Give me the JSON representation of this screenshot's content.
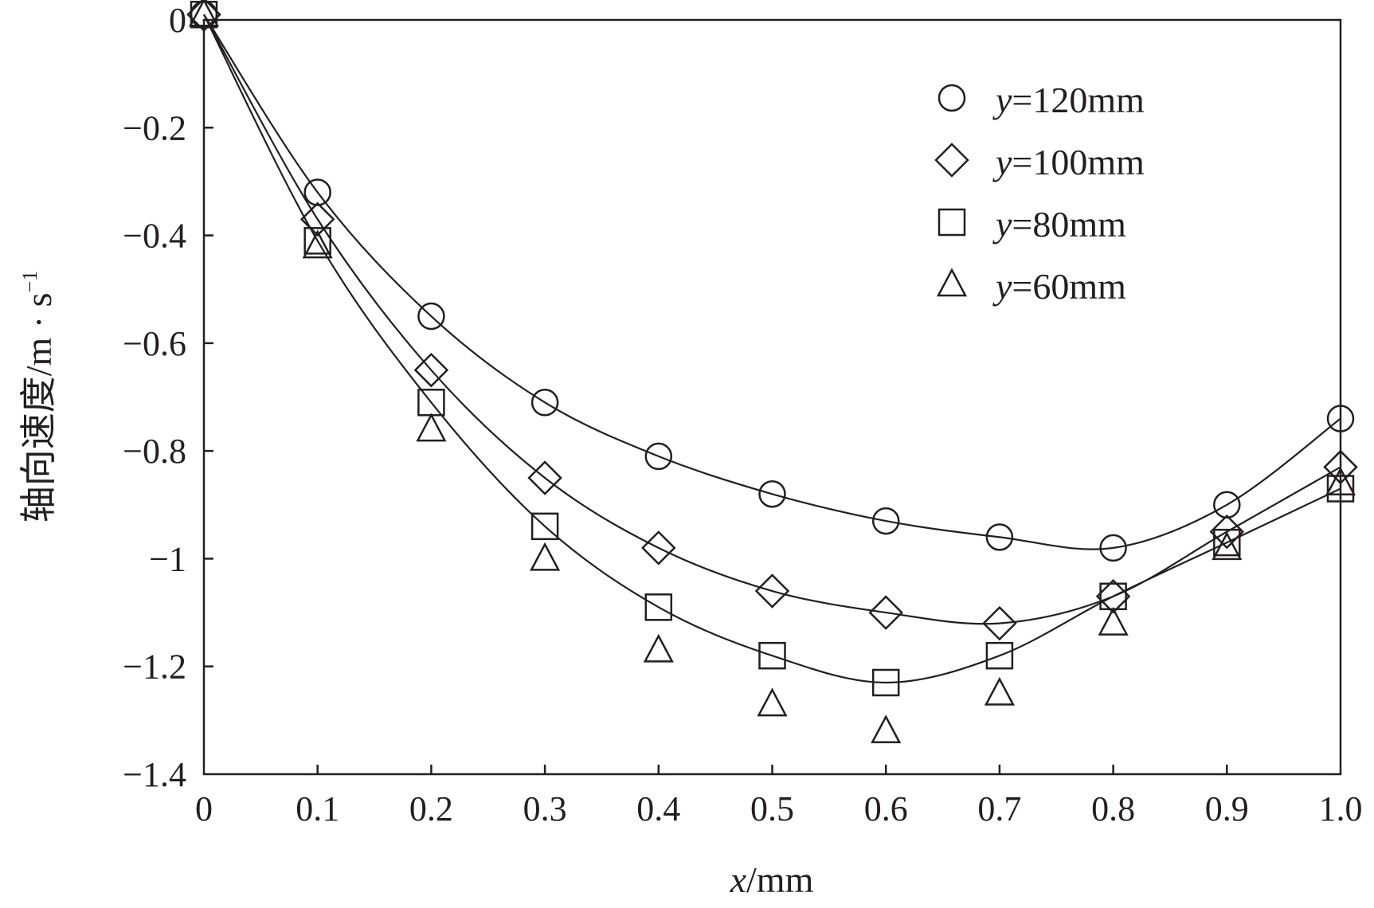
{
  "chart_data": {
    "type": "line",
    "title": "",
    "xlabel": {
      "var": "x",
      "unit": "/mm"
    },
    "ylabel": {
      "main": "轴向速度/m · s",
      "sup": "−1"
    },
    "xlim": [
      0,
      1.0
    ],
    "ylim": [
      -1.4,
      0
    ],
    "xticks": [
      0,
      0.1,
      0.2,
      0.3,
      0.4,
      0.5,
      0.6,
      0.7,
      0.8,
      0.9,
      1.0
    ],
    "xtick_labels": [
      "0",
      "0.1",
      "0.2",
      "0.3",
      "0.4",
      "0.5",
      "0.6",
      "0.7",
      "0.8",
      "0.9",
      "1.0"
    ],
    "yticks": [
      0,
      -0.2,
      -0.4,
      -0.6,
      -0.8,
      -1.0,
      -1.2,
      -1.4
    ],
    "ytick_labels": [
      "0",
      "−0.2",
      "−0.4",
      "−0.6",
      "−0.8",
      "−1",
      "−1.2",
      "−1.4"
    ],
    "legend_position": "top-right",
    "x": [
      0,
      0.1,
      0.2,
      0.3,
      0.4,
      0.5,
      0.6,
      0.7,
      0.8,
      0.9,
      1.0
    ],
    "series": [
      {
        "name": "y=120mm",
        "var": "y",
        "label": "=120mm",
        "marker": "circle",
        "line": true,
        "values": [
          0.01,
          -0.32,
          -0.55,
          -0.71,
          -0.81,
          -0.88,
          -0.93,
          -0.96,
          -0.98,
          -0.9,
          -0.74
        ]
      },
      {
        "name": "y=100mm",
        "var": "y",
        "label": "=100mm",
        "marker": "diamond",
        "line": true,
        "values": [
          0.01,
          -0.37,
          -0.65,
          -0.85,
          -0.98,
          -1.06,
          -1.1,
          -1.12,
          -1.07,
          -0.95,
          -0.83
        ]
      },
      {
        "name": "y=80mm",
        "var": "y",
        "label": "=80mm",
        "marker": "square",
        "line": true,
        "values": [
          0.01,
          -0.41,
          -0.71,
          -0.94,
          -1.09,
          -1.18,
          -1.23,
          -1.18,
          -1.07,
          -0.97,
          -0.87
        ]
      },
      {
        "name": "y=60mm",
        "var": "y",
        "label": "=60mm",
        "marker": "triangle",
        "line": false,
        "values": [
          0.01,
          -0.42,
          -0.76,
          -1.0,
          -1.17,
          -1.27,
          -1.32,
          -1.25,
          -1.12,
          -0.98,
          -0.86
        ]
      }
    ]
  }
}
